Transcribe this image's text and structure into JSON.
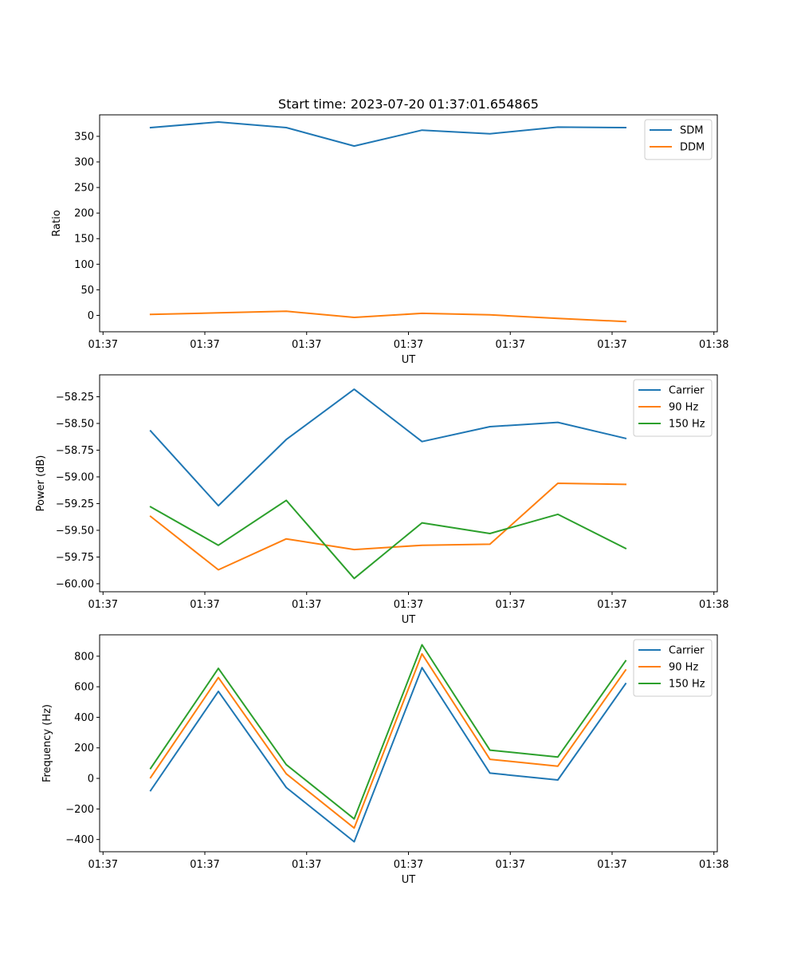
{
  "figure_title": "Start time: 2023-07-20 01:37:01.654865",
  "chart_data": [
    {
      "type": "line",
      "title": "Start time: 2023-07-20 01:37:01.654865",
      "xlabel": "UT",
      "ylabel": "Ratio",
      "xlim": [
        -0.75,
        8.35
      ],
      "ylim": [
        -32,
        392
      ],
      "xticks": [
        -0.7,
        0.8,
        2.3,
        3.8,
        5.3,
        6.8,
        8.3
      ],
      "xtick_labels": [
        "01:37",
        "01:37",
        "01:37",
        "01:37",
        "01:37",
        "01:37",
        "01:38"
      ],
      "yticks": [
        0,
        50,
        100,
        150,
        200,
        250,
        300,
        350
      ],
      "ytick_labels": [
        "0",
        "50",
        "100",
        "150",
        "200",
        "250",
        "300",
        "350"
      ],
      "legend_position": "top-right",
      "series": [
        {
          "name": "SDM",
          "color": "#1f77b4",
          "x": [
            0,
            1,
            2,
            3,
            4,
            5,
            6,
            7
          ],
          "values": [
            367,
            378,
            367,
            331,
            362,
            355,
            368,
            367
          ]
        },
        {
          "name": "DDM",
          "color": "#ff7f0e",
          "x": [
            0,
            1,
            2,
            3,
            4,
            5,
            6,
            7
          ],
          "values": [
            2,
            5,
            8,
            -4,
            4,
            1,
            -6,
            -12
          ]
        }
      ]
    },
    {
      "type": "line",
      "title": "",
      "xlabel": "UT",
      "ylabel": "Power (dB)",
      "xlim": [
        -0.75,
        8.35
      ],
      "ylim": [
        -60.075,
        -58.045
      ],
      "xticks": [
        -0.7,
        0.8,
        2.3,
        3.8,
        5.3,
        6.8,
        8.3
      ],
      "xtick_labels": [
        "01:37",
        "01:37",
        "01:37",
        "01:37",
        "01:37",
        "01:37",
        "01:38"
      ],
      "yticks": [
        -60.0,
        -59.75,
        -59.5,
        -59.25,
        -59.0,
        -58.75,
        -58.5,
        -58.25
      ],
      "ytick_labels": [
        "−60.00",
        "−59.75",
        "−59.50",
        "−59.25",
        "−59.00",
        "−58.75",
        "−58.50",
        "−58.25"
      ],
      "legend_position": "top-right",
      "series": [
        {
          "name": "Carrier",
          "color": "#1f77b4",
          "x": [
            0,
            1,
            2,
            3,
            4,
            5,
            6,
            7
          ],
          "values": [
            -58.57,
            -59.27,
            -58.65,
            -58.18,
            -58.67,
            -58.53,
            -58.49,
            -58.64
          ]
        },
        {
          "name": "90 Hz",
          "color": "#ff7f0e",
          "x": [
            0,
            1,
            2,
            3,
            4,
            5,
            6,
            7
          ],
          "values": [
            -59.37,
            -59.87,
            -59.58,
            -59.68,
            -59.64,
            -59.63,
            -59.06,
            -59.07
          ]
        },
        {
          "name": "150 Hz",
          "color": "#2ca02c",
          "x": [
            0,
            1,
            2,
            3,
            4,
            5,
            6,
            7
          ],
          "values": [
            -59.28,
            -59.64,
            -59.22,
            -59.95,
            -59.43,
            -59.53,
            -59.35,
            -59.67
          ]
        }
      ]
    },
    {
      "type": "line",
      "title": "",
      "xlabel": "UT",
      "ylabel": "Frequency (Hz)",
      "xlim": [
        -0.75,
        8.35
      ],
      "ylim": [
        -480,
        940
      ],
      "xticks": [
        -0.7,
        0.8,
        2.3,
        3.8,
        5.3,
        6.8,
        8.3
      ],
      "xtick_labels": [
        "01:37",
        "01:37",
        "01:37",
        "01:37",
        "01:37",
        "01:37",
        "01:38"
      ],
      "yticks": [
        -400,
        -200,
        0,
        200,
        400,
        600,
        800
      ],
      "ytick_labels": [
        "−400",
        "−200",
        "0",
        "200",
        "400",
        "600",
        "800"
      ],
      "legend_position": "top-right",
      "series": [
        {
          "name": "Carrier",
          "color": "#1f77b4",
          "x": [
            0,
            1,
            2,
            3,
            4,
            5,
            6,
            7
          ],
          "values": [
            -80,
            570,
            -60,
            -415,
            725,
            35,
            -10,
            620
          ]
        },
        {
          "name": "90 Hz",
          "color": "#ff7f0e",
          "x": [
            0,
            1,
            2,
            3,
            4,
            5,
            6,
            7
          ],
          "values": [
            5,
            660,
            30,
            -325,
            815,
            125,
            80,
            710
          ]
        },
        {
          "name": "150 Hz",
          "color": "#2ca02c",
          "x": [
            0,
            1,
            2,
            3,
            4,
            5,
            6,
            7
          ],
          "values": [
            65,
            720,
            90,
            -265,
            875,
            185,
            140,
            770
          ]
        }
      ]
    }
  ]
}
